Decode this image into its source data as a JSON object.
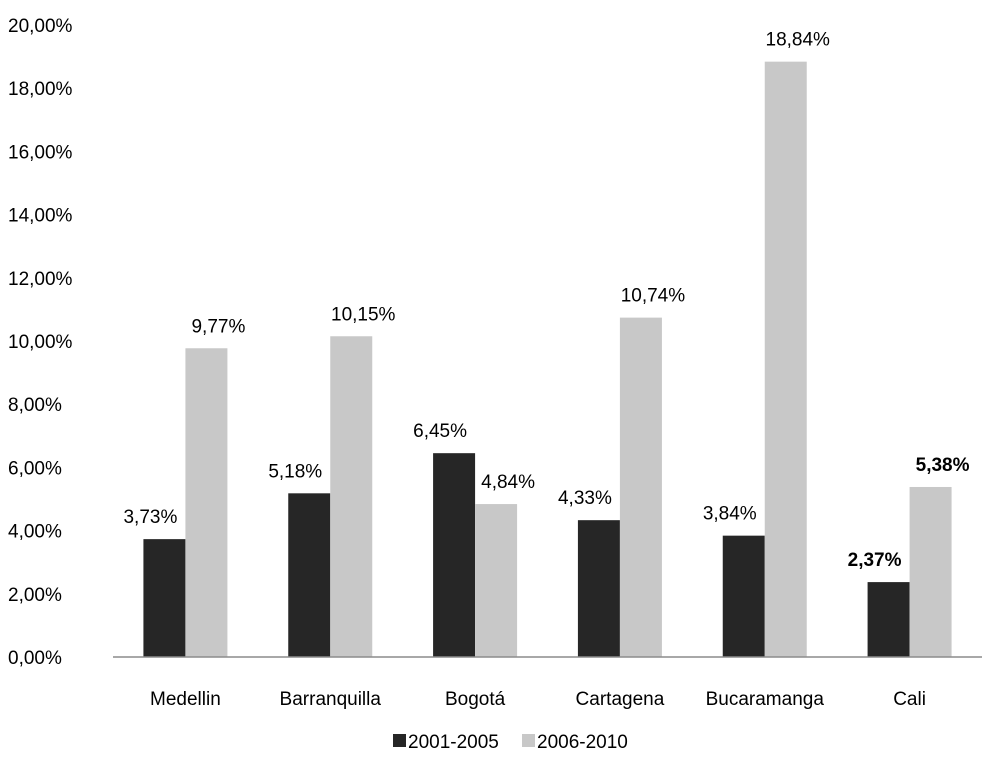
{
  "chart_data": {
    "type": "bar",
    "categories": [
      "Medellin",
      "Barranquilla",
      "Bogotá",
      "Cartagena",
      "Bucaramanga",
      "Cali"
    ],
    "series": [
      {
        "name": "2001-2005",
        "color": "#262626",
        "values": [
          3.73,
          5.18,
          6.45,
          4.33,
          3.84,
          2.37
        ],
        "labels": [
          "3,73%",
          "5,18%",
          "6,45%",
          "4,33%",
          "3,84%",
          "2,37%"
        ],
        "bold_labels": [
          false,
          false,
          false,
          false,
          false,
          true
        ]
      },
      {
        "name": "2006-2010",
        "color": "#c8c8c8",
        "values": [
          9.77,
          10.15,
          4.84,
          10.74,
          18.84,
          5.38
        ],
        "labels": [
          "9,77%",
          "10,15%",
          "4,84%",
          "10,74%",
          "18,84%",
          "5,38%"
        ],
        "bold_labels": [
          false,
          false,
          false,
          false,
          false,
          true
        ]
      }
    ],
    "ylim": [
      0,
      20
    ],
    "yticks": [
      0,
      2,
      4,
      6,
      8,
      10,
      12,
      14,
      16,
      18,
      20
    ],
    "ytick_labels": [
      "0,00%",
      "2,00%",
      "4,00%",
      "6,00%",
      "8,00%",
      "10,00%",
      "12,00%",
      "14,00%",
      "16,00%",
      "18,00%",
      "20,00%"
    ],
    "title": "",
    "xlabel": "",
    "ylabel": "",
    "grid": false,
    "legend_position": "bottom"
  }
}
